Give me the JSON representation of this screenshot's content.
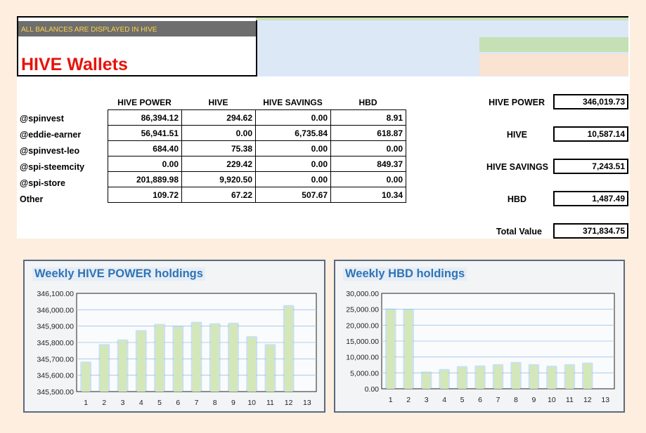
{
  "banner": "ALL BALANCES ARE DISPLAYED IN HIVE",
  "title": "HIVE Wallets",
  "table": {
    "columns": [
      "HIVE POWER",
      "HIVE",
      "HIVE SAVINGS",
      "HBD"
    ],
    "rows": [
      {
        "account": "@spinvest",
        "values": [
          "86,394.12",
          "294.62",
          "0.00",
          "8.91"
        ]
      },
      {
        "account": "@eddie-earner",
        "values": [
          "56,941.51",
          "0.00",
          "6,735.84",
          "618.87"
        ]
      },
      {
        "account": "@spinvest-leo",
        "values": [
          "684.40",
          "75.38",
          "0.00",
          "0.00"
        ]
      },
      {
        "account": "@spi-steemcity",
        "values": [
          "0.00",
          "229.42",
          "0.00",
          "849.37"
        ]
      },
      {
        "account": "@spi-store",
        "values": [
          "201,889.98",
          "9,920.50",
          "0.00",
          "0.00"
        ]
      },
      {
        "account": "Other",
        "values": [
          "109.72",
          "67.22",
          "507.67",
          "10.34"
        ]
      }
    ]
  },
  "summary": [
    {
      "label": "HIVE POWER",
      "value": "346,019.73"
    },
    {
      "label": "HIVE",
      "value": "10,587.14"
    },
    {
      "label": "HIVE SAVINGS",
      "value": "7,243.51"
    },
    {
      "label": "HBD",
      "value": "1,487.49"
    },
    {
      "label": "Total Value",
      "value": "371,834.75"
    }
  ],
  "colors": {
    "title": "#e8120c",
    "banner_text": "#ffd34a",
    "chart_title": "#2e74b5",
    "bar_fill": "#d4e7b9",
    "bar_glow": "#8fc0ea"
  },
  "chart_data": [
    {
      "type": "bar",
      "title": "Weekly HIVE POWER holdings",
      "categories": [
        "1",
        "2",
        "3",
        "4",
        "5",
        "6",
        "7",
        "8",
        "9",
        "10",
        "11",
        "12",
        "13"
      ],
      "values": [
        345675,
        345782,
        345810,
        345867,
        345905,
        345893,
        345918,
        345909,
        345912,
        345830,
        345782,
        346020,
        null
      ],
      "ylim": [
        345500,
        346100
      ],
      "yticks": [
        "345,500.00",
        "345,600.00",
        "345,700.00",
        "345,800.00",
        "345,900.00",
        "346,000.00",
        "346,100.00"
      ],
      "grid": true
    },
    {
      "type": "bar",
      "title": "Weekly HBD holdings",
      "categories": [
        "1",
        "2",
        "3",
        "4",
        "5",
        "6",
        "7",
        "8",
        "9",
        "10",
        "11",
        "12",
        "13"
      ],
      "values": [
        24800,
        24700,
        5000,
        5800,
        6700,
        6900,
        7300,
        8000,
        7300,
        6800,
        7300,
        7800,
        null
      ],
      "ylim": [
        0,
        30000
      ],
      "yticks": [
        "0.00",
        "5,000.00",
        "10,000.00",
        "15,000.00",
        "20,000.00",
        "25,000.00",
        "30,000.00"
      ],
      "grid": true
    }
  ]
}
